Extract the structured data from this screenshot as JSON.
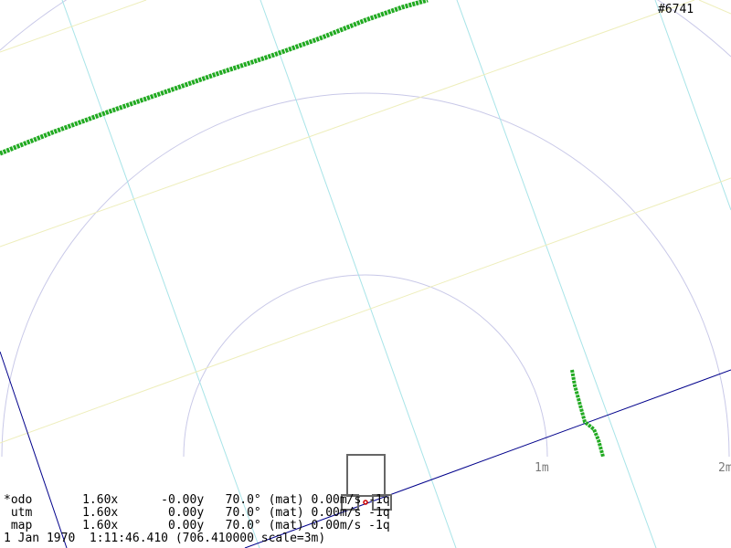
{
  "frame_counter": "#6741",
  "range_labels": [
    "1m",
    "2m"
  ],
  "colors": {
    "background": "#ffffff",
    "grid_cyan": "#a8e4e8",
    "grid_yellow": "#eeeebb",
    "range_ring": "#c8c8e8",
    "scan_points": "#22aa22",
    "heading_line": "#00008b",
    "robot_outline": "#666666",
    "robot_marker": "#cc0000"
  },
  "status": {
    "odo": "*odo       1.60x      -0.00y   70.0° (mat) 0.00m/s -1q",
    "utm": " utm       1.60x       0.00y   70.0° (mat) 0.00m/s -1q",
    "map": " map       1.60x       0.00y   70.0° (mat) 0.00m/s -1q",
    "time": "1 Jan 1970  1:11:46.410 (706.410000 scale=3m)"
  }
}
